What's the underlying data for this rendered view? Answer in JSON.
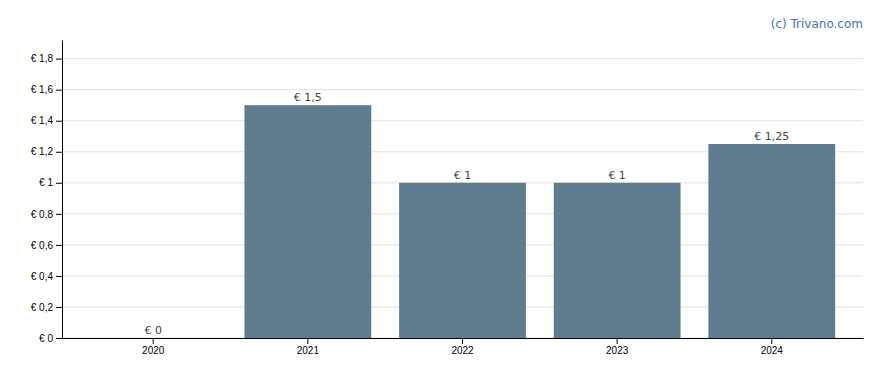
{
  "chart_data": {
    "type": "bar",
    "categories": [
      "2020",
      "2021",
      "2022",
      "2023",
      "2024"
    ],
    "values": [
      0,
      1.5,
      1.0,
      1.0,
      1.25
    ],
    "value_labels": [
      "€ 0",
      "€ 1,5",
      "€ 1",
      "€ 1",
      "€ 1,25"
    ],
    "data_labels": true,
    "color": "#5f7d8e",
    "ylim": [
      0,
      1.92
    ],
    "yticks": [
      {
        "value": 0,
        "label": "€ 0"
      },
      {
        "value": 0.2,
        "label": "€ 0,2"
      },
      {
        "value": 0.4,
        "label": "€ 0,4"
      },
      {
        "value": 0.6,
        "label": "€ 0,6"
      },
      {
        "value": 0.8,
        "label": "€ 0,8"
      },
      {
        "value": 1.0,
        "label": "€ 1"
      },
      {
        "value": 1.2,
        "label": "€ 1,2"
      },
      {
        "value": 1.4,
        "label": "€ 1,4"
      },
      {
        "value": 1.6,
        "label": "€ 1,6"
      },
      {
        "value": 1.8,
        "label": "€ 1,8"
      }
    ],
    "grid": true,
    "annotations": [
      "(c) Trivano.com"
    ]
  }
}
